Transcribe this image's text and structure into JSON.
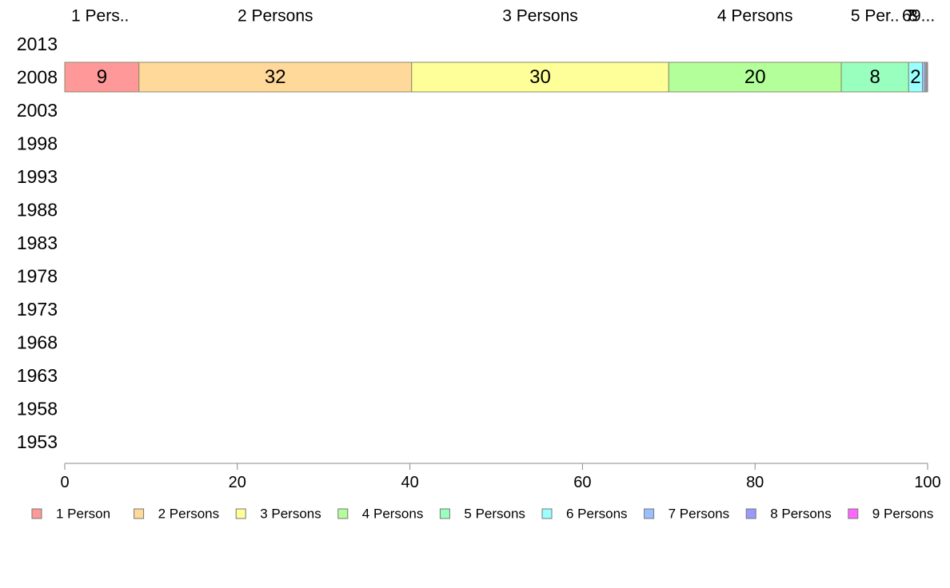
{
  "chart_data": {
    "type": "bar",
    "orientation": "horizontal",
    "stacked": true,
    "percent_scale": true,
    "categories": [
      "2013",
      "2008",
      "2003",
      "1998",
      "1993",
      "1988",
      "1983",
      "1978",
      "1973",
      "1968",
      "1963",
      "1958",
      "1953"
    ],
    "top_labels": [
      "1 Pers..",
      "2 Persons",
      "3 Persons",
      "4 Persons",
      "5 Per..",
      "6",
      "7",
      "8",
      "9..."
    ],
    "series": [
      {
        "name": "1 Person",
        "color": "#ff9999",
        "values": [
          null,
          8.6,
          null,
          null,
          null,
          null,
          null,
          null,
          null,
          null,
          null,
          null,
          null
        ],
        "labels": [
          null,
          "9",
          null,
          null,
          null,
          null,
          null,
          null,
          null,
          null,
          null,
          null,
          null
        ]
      },
      {
        "name": "2 Persons",
        "color": "#ffd999",
        "values": [
          null,
          31.6,
          null,
          null,
          null,
          null,
          null,
          null,
          null,
          null,
          null,
          null,
          null
        ],
        "labels": [
          null,
          "32",
          null,
          null,
          null,
          null,
          null,
          null,
          null,
          null,
          null,
          null,
          null
        ]
      },
      {
        "name": "3 Persons",
        "color": "#ffff99",
        "values": [
          null,
          29.8,
          null,
          null,
          null,
          null,
          null,
          null,
          null,
          null,
          null,
          null,
          null
        ],
        "labels": [
          null,
          "30",
          null,
          null,
          null,
          null,
          null,
          null,
          null,
          null,
          null,
          null,
          null
        ]
      },
      {
        "name": "4 Persons",
        "color": "#b3ff99",
        "values": [
          null,
          20.0,
          null,
          null,
          null,
          null,
          null,
          null,
          null,
          null,
          null,
          null,
          null
        ],
        "labels": [
          null,
          "20",
          null,
          null,
          null,
          null,
          null,
          null,
          null,
          null,
          null,
          null,
          null
        ]
      },
      {
        "name": "5 Persons",
        "color": "#99ffbf",
        "values": [
          null,
          7.8,
          null,
          null,
          null,
          null,
          null,
          null,
          null,
          null,
          null,
          null,
          null
        ],
        "labels": [
          null,
          "8",
          null,
          null,
          null,
          null,
          null,
          null,
          null,
          null,
          null,
          null,
          null
        ]
      },
      {
        "name": "6 Persons",
        "color": "#99ffff",
        "values": [
          null,
          1.6,
          null,
          null,
          null,
          null,
          null,
          null,
          null,
          null,
          null,
          null,
          null
        ],
        "labels": [
          null,
          "2",
          null,
          null,
          null,
          null,
          null,
          null,
          null,
          null,
          null,
          null,
          null
        ]
      },
      {
        "name": "7 Persons",
        "color": "#99bfff",
        "values": [
          null,
          0.3,
          null,
          null,
          null,
          null,
          null,
          null,
          null,
          null,
          null,
          null,
          null
        ],
        "labels": [
          null,
          null,
          null,
          null,
          null,
          null,
          null,
          null,
          null,
          null,
          null,
          null,
          null
        ]
      },
      {
        "name": "8 Persons",
        "color": "#9999ff",
        "values": [
          null,
          0.2,
          null,
          null,
          null,
          null,
          null,
          null,
          null,
          null,
          null,
          null,
          null
        ],
        "labels": [
          null,
          null,
          null,
          null,
          null,
          null,
          null,
          null,
          null,
          null,
          null,
          null,
          null
        ]
      },
      {
        "name": "9 Persons",
        "color": "#ff66ff",
        "values": [
          null,
          0.1,
          null,
          null,
          null,
          null,
          null,
          null,
          null,
          null,
          null,
          null,
          null
        ],
        "labels": [
          null,
          null,
          null,
          null,
          null,
          null,
          null,
          null,
          null,
          null,
          null,
          null,
          null
        ]
      }
    ],
    "xlim": [
      0,
      100
    ],
    "xticks": [
      0,
      20,
      40,
      60,
      80,
      100
    ],
    "grid": false,
    "legend_position": "bottom"
  }
}
